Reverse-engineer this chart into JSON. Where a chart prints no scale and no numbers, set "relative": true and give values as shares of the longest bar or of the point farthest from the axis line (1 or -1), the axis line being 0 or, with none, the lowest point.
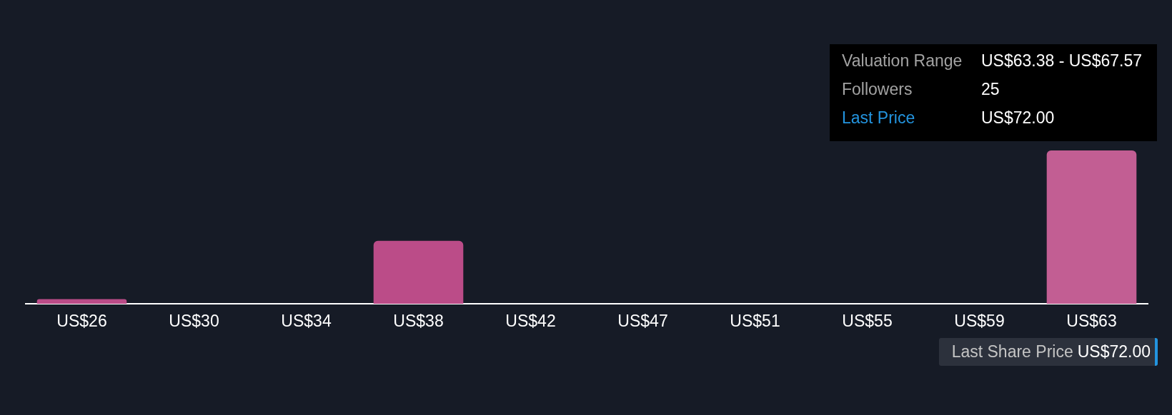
{
  "chart_data": {
    "type": "bar",
    "categories": [
      "US$26",
      "US$30",
      "US$34",
      "US$38",
      "US$42",
      "US$47",
      "US$51",
      "US$55",
      "US$59",
      "US$63"
    ],
    "values": [
      0.03,
      0,
      0,
      0.41,
      0,
      0,
      0,
      0,
      0,
      1
    ],
    "colors": [
      "#bb4c88",
      "#bb4c88",
      "#bb4c88",
      "#bb4c88",
      "#bb4c88",
      "#bb4c88",
      "#bb4c88",
      "#bb4c88",
      "#bb4c88",
      "#c25e93"
    ],
    "relative": true,
    "annotations": [
      "Valuation Range",
      "US$63.38 - US$67.57",
      "Followers",
      "25",
      "Last Price",
      "US$72.00",
      "Last Share Price",
      "US$72.00"
    ]
  }
}
